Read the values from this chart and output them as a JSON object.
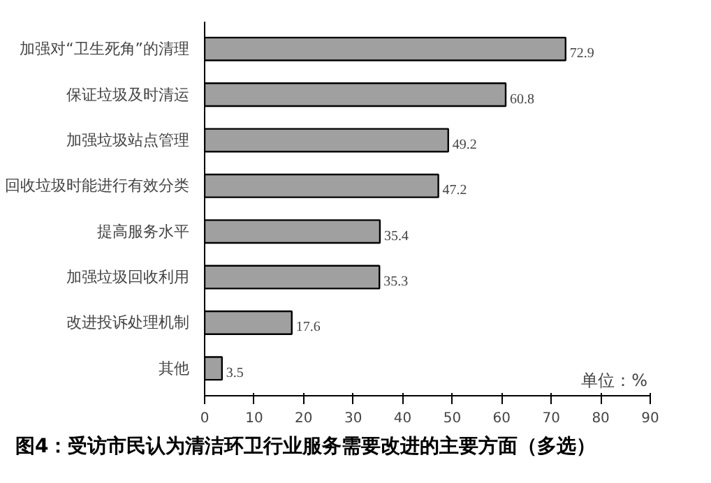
{
  "chart_data": {
    "type": "bar",
    "orientation": "horizontal",
    "title": "图4：受访市民认为清洁环卫行业服务需要改进的主要方面（多选）",
    "categories": [
      "加强对“卫生死角”的清理",
      "保证垃圾及时清运",
      "加强垃圾站点管理",
      "回收垃圾时能进行有效分类",
      "提高服务水平",
      "加强垃圾回收利用",
      "改进投诉处理机制",
      "其他"
    ],
    "values": [
      72.9,
      60.8,
      49.2,
      47.2,
      35.4,
      35.3,
      17.6,
      3.5
    ],
    "color": "#a0a0a0",
    "xlim": [
      0,
      90
    ],
    "xticks": [
      0,
      10,
      20,
      30,
      40,
      50,
      60,
      70,
      80,
      90
    ],
    "data_labels": true,
    "grid": false,
    "annotations": [
      "单位：%"
    ]
  }
}
